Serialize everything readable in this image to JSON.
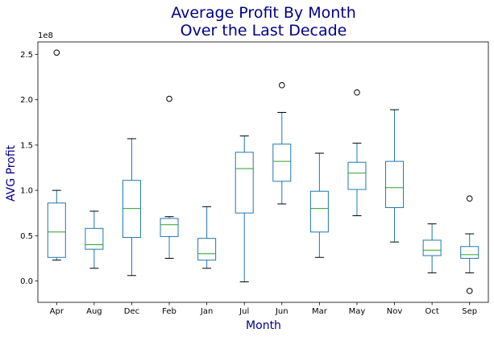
{
  "chart_data": {
    "type": "box",
    "title_line1": "Average Profit By Month",
    "title_line2": "Over the Last Decade",
    "xlabel": "Month",
    "ylabel": "AVG Profit",
    "y_offset_label": "1e8",
    "ylim": [
      -0.25,
      2.65
    ],
    "y_ticks": [
      "0.0",
      "0.5",
      "1.0",
      "1.5",
      "2.0",
      "2.5"
    ],
    "y_unit_multiplier": 100000000,
    "grid": false,
    "colors": {
      "box": "#1f77b4",
      "median": "#2ca02c",
      "whisker": "#000000",
      "title": "#00008b"
    },
    "categories": [
      "Apr",
      "Aug",
      "Dec",
      "Feb",
      "Jan",
      "Jul",
      "Jun",
      "Mar",
      "May",
      "Nov",
      "Oct",
      "Sep"
    ],
    "boxes": [
      {
        "category": "Apr",
        "whislo": 0.23,
        "q1": 0.26,
        "med": 0.54,
        "q3": 0.86,
        "whishi": 1.0,
        "fliers": [
          2.52
        ]
      },
      {
        "category": "Aug",
        "whislo": 0.14,
        "q1": 0.35,
        "med": 0.4,
        "q3": 0.58,
        "whishi": 0.77,
        "fliers": []
      },
      {
        "category": "Dec",
        "whislo": 0.06,
        "q1": 0.48,
        "med": 0.8,
        "q3": 1.11,
        "whishi": 1.57,
        "fliers": []
      },
      {
        "category": "Feb",
        "whislo": 0.25,
        "q1": 0.49,
        "med": 0.62,
        "q3": 0.69,
        "whishi": 0.71,
        "fliers": [
          2.01
        ]
      },
      {
        "category": "Jan",
        "whislo": 0.14,
        "q1": 0.23,
        "med": 0.3,
        "q3": 0.47,
        "whishi": 0.82,
        "fliers": []
      },
      {
        "category": "Jul",
        "whislo": -0.01,
        "q1": 0.75,
        "med": 1.24,
        "q3": 1.42,
        "whishi": 1.6,
        "fliers": []
      },
      {
        "category": "Jun",
        "whislo": 0.85,
        "q1": 1.1,
        "med": 1.32,
        "q3": 1.51,
        "whishi": 1.86,
        "fliers": [
          2.16
        ]
      },
      {
        "category": "Mar",
        "whislo": 0.26,
        "q1": 0.54,
        "med": 0.8,
        "q3": 0.99,
        "whishi": 1.41,
        "fliers": []
      },
      {
        "category": "May",
        "whislo": 0.72,
        "q1": 1.01,
        "med": 1.19,
        "q3": 1.31,
        "whishi": 1.52,
        "fliers": [
          2.08
        ]
      },
      {
        "category": "Nov",
        "whislo": 0.43,
        "q1": 0.81,
        "med": 1.03,
        "q3": 1.32,
        "whishi": 1.89,
        "fliers": []
      },
      {
        "category": "Oct",
        "whislo": 0.09,
        "q1": 0.28,
        "med": 0.34,
        "q3": 0.45,
        "whishi": 0.63,
        "fliers": []
      },
      {
        "category": "Sep",
        "whislo": 0.09,
        "q1": 0.25,
        "med": 0.29,
        "q3": 0.38,
        "whishi": 0.52,
        "fliers": [
          0.91,
          -0.11
        ]
      }
    ]
  }
}
